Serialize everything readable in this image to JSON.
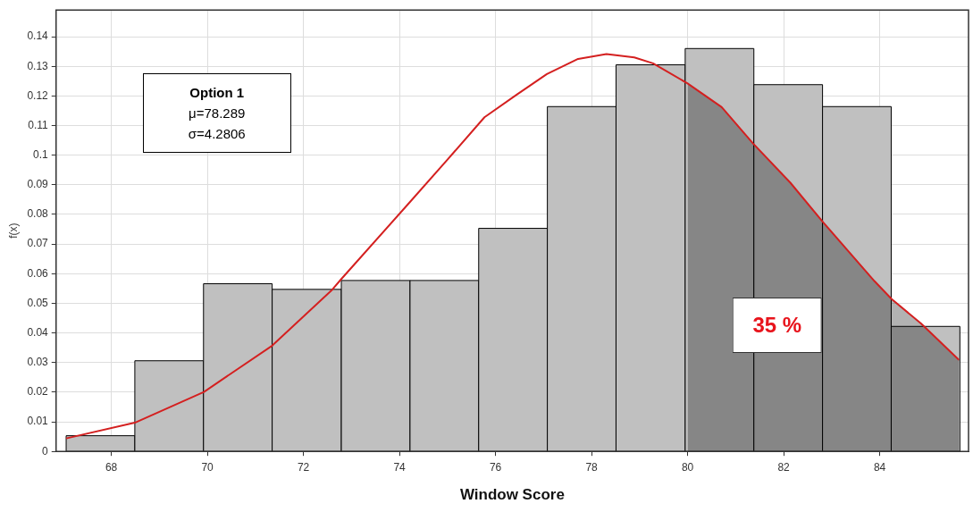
{
  "chart_data": {
    "type": "histogram",
    "xlabel": "Window Score",
    "ylabel": "f(x)",
    "xlim": [
      66.85,
      85.85
    ],
    "ylim": [
      0,
      0.149
    ],
    "xticks": [
      68,
      70,
      72,
      74,
      76,
      78,
      80,
      82,
      84
    ],
    "yticks": [
      0,
      0.01,
      0.02,
      0.03,
      0.04,
      0.05,
      0.06,
      0.07,
      0.08,
      0.09,
      0.1,
      0.11,
      0.12,
      0.13,
      0.14
    ],
    "grid": true,
    "legend": false,
    "marker": "none",
    "series": [
      {
        "color": "#c0c0c0",
        "bins": [
          67.06,
          68.49,
          69.92,
          71.35,
          72.79,
          74.22,
          75.65,
          77.08,
          78.51,
          79.95,
          81.38,
          82.81,
          84.24,
          85.67
        ],
        "values": [
          0.0053,
          0.0306,
          0.0566,
          0.0547,
          0.0577,
          0.0577,
          0.0753,
          0.1164,
          0.1305,
          0.136,
          0.1238,
          0.1164,
          0.0422
        ]
      },
      {
        "type": "line",
        "color": "#d42020",
        "x": [
          67.06,
          68.49,
          69.93,
          71.35,
          72.6,
          72.79,
          74.22,
          75.0,
          75.77,
          76.43,
          77.07,
          77.72,
          78.31,
          78.89,
          79.28,
          80.0,
          80.71,
          81.36,
          82.14,
          82.82,
          83.89,
          84.25,
          84.86,
          85.65
        ],
        "values": [
          0.0044,
          0.0097,
          0.0201,
          0.0357,
          0.0546,
          0.0582,
          0.0842,
          0.0985,
          0.1128,
          0.1203,
          0.1274,
          0.1325,
          0.1341,
          0.133,
          0.131,
          0.1242,
          0.1162,
          0.104,
          0.0907,
          0.0774,
          0.0575,
          0.0514,
          0.0432,
          0.0309
        ]
      },
      {
        "type": "area",
        "name": "35 %",
        "color": "#000000",
        "x": [
          80.0,
          80.71,
          81.36,
          82.14,
          82.82,
          83.89,
          84.25,
          84.86,
          85.65
        ],
        "values": [
          0.1242,
          0.1162,
          0.104,
          0.0907,
          0.0774,
          0.0575,
          0.0514,
          0.0432,
          0.0309
        ]
      }
    ],
    "annotations": [
      "Option 1",
      "μ=78.289",
      "σ=4.2806"
    ]
  }
}
